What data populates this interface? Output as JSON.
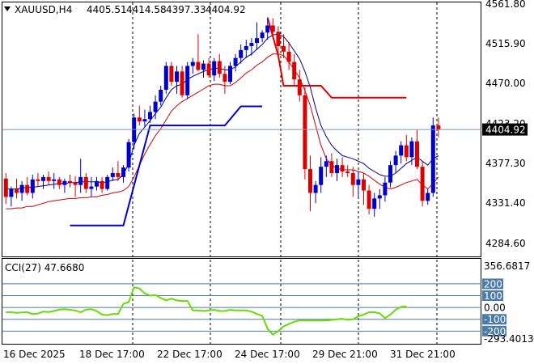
{
  "header": {
    "symbol": "XAUUSD,H4",
    "open": "4405.51",
    "high": "4414.58",
    "low": "4397.33",
    "close": "4404.92"
  },
  "indicator": {
    "label": "CCI(27) 47.6680",
    "axis_labels": [
      "356.6817",
      "200",
      "100",
      "0.00",
      "-100",
      "-200",
      "-293.4013"
    ],
    "levels": [
      200,
      100,
      0,
      -100,
      -200
    ],
    "range": [
      -293.4013,
      356.6817
    ],
    "values": [
      -40,
      -40,
      -45,
      -42,
      -40,
      -55,
      -52,
      -35,
      -38,
      -30,
      -18,
      -15,
      -20,
      -25,
      -40,
      -18,
      -15,
      -30,
      -60,
      -65,
      -55,
      -55,
      30,
      45,
      170,
      160,
      120,
      100,
      105,
      80,
      60,
      75,
      60,
      55,
      55,
      -25,
      -25,
      -30,
      -25,
      -20,
      -30,
      -30,
      -20,
      -25,
      -25,
      -25,
      -35,
      -55,
      -70,
      -180,
      -230,
      -200,
      -160,
      -140,
      -120,
      -110,
      -110,
      -110,
      -110,
      -110,
      -110,
      -105,
      -100,
      -95,
      -105,
      -100,
      -75,
      -60,
      -40,
      -40,
      -50,
      -90,
      -60,
      -20,
      5,
      10
    ],
    "color": "#66dd00"
  },
  "price_axis": {
    "labels": [
      "4561.80",
      "4515.90",
      "4470.00",
      "4423.20",
      "4377.30",
      "4331.40",
      "4284.60"
    ],
    "current_price": "4404.92",
    "range": [
      4245,
      4565
    ]
  },
  "time_axis": {
    "labels": [
      "16 Dec 2025",
      "18 Dec 17:00",
      "22 Dec 17:00",
      "24 Dec 17:00",
      "29 Dec 21:00",
      "31 Dec 21:00"
    ]
  },
  "colors": {
    "bull_candle": "#0000cc",
    "bear_candle": "#dd0000",
    "fast_ma": "#000080",
    "slow_ma": "#cc0000",
    "stop_line_bull": "#0000cc",
    "stop_line_bear": "#dd0000",
    "grid": "#000000",
    "current_price_line": "#7799bb"
  },
  "chart_data": {
    "type": "candlestick",
    "candles": [
      [
        4343,
        4350,
        4311,
        4320
      ],
      [
        4320,
        4333,
        4308,
        4330
      ],
      [
        4330,
        4343,
        4318,
        4325
      ],
      [
        4325,
        4340,
        4315,
        4335
      ],
      [
        4335,
        4345,
        4322,
        4325
      ],
      [
        4325,
        4348,
        4318,
        4342
      ],
      [
        4342,
        4350,
        4333,
        4340
      ],
      [
        4340,
        4348,
        4330,
        4345
      ],
      [
        4345,
        4352,
        4335,
        4340
      ],
      [
        4340,
        4350,
        4330,
        4342
      ],
      [
        4342,
        4345,
        4330,
        4335
      ],
      [
        4335,
        4343,
        4325,
        4340
      ],
      [
        4340,
        4348,
        4332,
        4338
      ],
      [
        4338,
        4346,
        4320,
        4335
      ],
      [
        4335,
        4368,
        4325,
        4345
      ],
      [
        4345,
        4350,
        4325,
        4330
      ],
      [
        4330,
        4345,
        4320,
        4333
      ],
      [
        4333,
        4345,
        4328,
        4340
      ],
      [
        4340,
        4345,
        4325,
        4330
      ],
      [
        4330,
        4348,
        4328,
        4345
      ],
      [
        4345,
        4357,
        4340,
        4350
      ],
      [
        4350,
        4365,
        4340,
        4345
      ],
      [
        4345,
        4360,
        4338,
        4357
      ],
      [
        4357,
        4393,
        4352,
        4389
      ],
      [
        4389,
        4425,
        4380,
        4420
      ],
      [
        4420,
        4435,
        4410,
        4415
      ],
      [
        4415,
        4430,
        4408,
        4418
      ],
      [
        4418,
        4435,
        4413,
        4427
      ],
      [
        4427,
        4448,
        4418,
        4440
      ],
      [
        4440,
        4460,
        4435,
        4455
      ],
      [
        4455,
        4490,
        4450,
        4485
      ],
      [
        4485,
        4490,
        4460,
        4465
      ],
      [
        4465,
        4485,
        4450,
        4478
      ],
      [
        4478,
        4485,
        4445,
        4448
      ],
      [
        4448,
        4490,
        4443,
        4485
      ],
      [
        4485,
        4495,
        4475,
        4490
      ],
      [
        4490,
        4525,
        4478,
        4480
      ],
      [
        4480,
        4492,
        4470,
        4488
      ],
      [
        4488,
        4495,
        4470,
        4473
      ],
      [
        4473,
        4495,
        4466,
        4491
      ],
      [
        4491,
        4500,
        4470,
        4475
      ],
      [
        4475,
        4485,
        4450,
        4465
      ],
      [
        4465,
        4490,
        4462,
        4485
      ],
      [
        4485,
        4500,
        4478,
        4495
      ],
      [
        4495,
        4512,
        4488,
        4505
      ],
      [
        4505,
        4518,
        4495,
        4510
      ],
      [
        4510,
        4520,
        4498,
        4514
      ],
      [
        4514,
        4540,
        4505,
        4520
      ],
      [
        4520,
        4530,
        4515,
        4527
      ],
      [
        4527,
        4545,
        4518,
        4536
      ],
      [
        4536,
        4545,
        4520,
        4528
      ],
      [
        4528,
        4535,
        4498,
        4510
      ],
      [
        4510,
        4525,
        4495,
        4503
      ],
      [
        4503,
        4515,
        4480,
        4490
      ],
      [
        4490,
        4500,
        4460,
        4468
      ],
      [
        4468,
        4480,
        4440,
        4448
      ],
      [
        4448,
        4458,
        4342,
        4355
      ],
      [
        4355,
        4372,
        4302,
        4325
      ],
      [
        4325,
        4340,
        4312,
        4335
      ],
      [
        4335,
        4370,
        4325,
        4358
      ],
      [
        4358,
        4372,
        4345,
        4365
      ],
      [
        4365,
        4375,
        4345,
        4350
      ],
      [
        4350,
        4368,
        4340,
        4360
      ],
      [
        4360,
        4370,
        4345,
        4352
      ],
      [
        4352,
        4360,
        4345,
        4350
      ],
      [
        4350,
        4358,
        4320,
        4335
      ],
      [
        4335,
        4352,
        4320,
        4342
      ],
      [
        4342,
        4350,
        4310,
        4328
      ],
      [
        4328,
        4335,
        4298,
        4305
      ],
      [
        4305,
        4325,
        4295,
        4318
      ],
      [
        4318,
        4330,
        4305,
        4322
      ],
      [
        4322,
        4345,
        4314,
        4338
      ],
      [
        4338,
        4365,
        4332,
        4360
      ],
      [
        4360,
        4378,
        4350,
        4372
      ],
      [
        4372,
        4390,
        4362,
        4385
      ],
      [
        4385,
        4398,
        4365,
        4370
      ],
      [
        4370,
        4395,
        4360,
        4390
      ],
      [
        4390,
        4405,
        4355,
        4358
      ],
      [
        4358,
        4365,
        4308,
        4315
      ],
      [
        4315,
        4330,
        4310,
        4325
      ],
      [
        4325,
        4420,
        4320,
        4410
      ],
      [
        4410,
        4420,
        4395,
        4405
      ]
    ],
    "fast_ma": [
      4330,
      4330,
      4330,
      4331,
      4332,
      4332,
      4333,
      4334,
      4335,
      4336,
      4337,
      4337,
      4338,
      4338,
      4339,
      4339,
      4339,
      4339,
      4338,
      4339,
      4341,
      4342,
      4348,
      4362,
      4385,
      4400,
      4408,
      4416,
      4425,
      4433,
      4445,
      4455,
      4460,
      4462,
      4468,
      4472,
      4475,
      4478,
      4480,
      4482,
      4482,
      4480,
      4480,
      4484,
      4490,
      4496,
      4500,
      4506,
      4512,
      4520,
      4524,
      4525,
      4522,
      4514,
      4504,
      4494,
      4478,
      4458,
      4432,
      4410,
      4396,
      4385,
      4378,
      4372,
      4370,
      4368,
      4365,
      4362,
      4356,
      4352,
      4348,
      4346,
      4346,
      4350,
      4356,
      4362,
      4366,
      4370,
      4365,
      4360,
      4368,
      4372
    ],
    "slow_ma": [
      4305,
      4305,
      4306,
      4306,
      4308,
      4308,
      4310,
      4312,
      4314,
      4315,
      4316,
      4317,
      4318,
      4318,
      4319,
      4319,
      4320,
      4320,
      4322,
      4323,
      4325,
      4326,
      4328,
      4333,
      4345,
      4360,
      4374,
      4386,
      4397,
      4406,
      4417,
      4428,
      4435,
      4440,
      4444,
      4448,
      4452,
      4456,
      4460,
      4462,
      4462,
      4460,
      4460,
      4464,
      4470,
      4476,
      4480,
      4486,
      4490,
      4496,
      4500,
      4500,
      4498,
      4490,
      4480,
      4470,
      4454,
      4435,
      4410,
      4385,
      4368,
      4360,
      4356,
      4354,
      4354,
      4354,
      4352,
      4350,
      4346,
      4341,
      4336,
      4332,
      4330,
      4332,
      4335,
      4338,
      4340,
      4342,
      4335,
      4330,
      4337,
      4345
    ],
    "stop_line": [
      {
        "side": "bull",
        "segments": [
          [
            12,
            4284
          ],
          [
            22,
            4284
          ],
          [
            27,
            4410
          ],
          [
            41,
            4410
          ],
          [
            44,
            4434
          ],
          [
            48,
            4434
          ]
        ]
      },
      {
        "side": "bear",
        "segments": [
          [
            49,
            4546
          ],
          [
            51,
            4498
          ],
          [
            52,
            4460
          ],
          [
            59,
            4460
          ],
          [
            61,
            4445
          ],
          [
            75,
            4445
          ]
        ]
      }
    ]
  }
}
